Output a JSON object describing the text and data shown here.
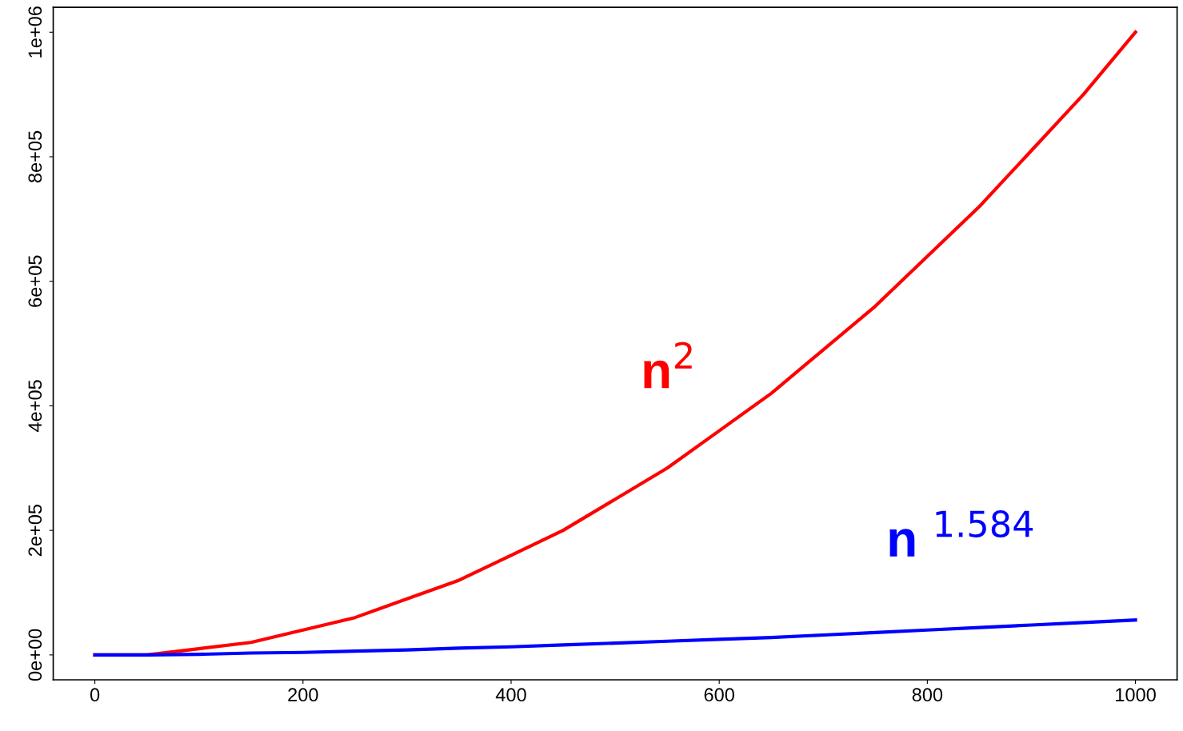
{
  "chart_data": {
    "type": "line",
    "x": [
      0,
      50,
      100,
      150,
      200,
      250,
      300,
      350,
      400,
      450,
      500,
      550,
      600,
      650,
      700,
      750,
      800,
      850,
      900,
      950,
      1000
    ],
    "series": [
      {
        "name": "n$^{2}$",
        "color": "#ff0000",
        "values": [
          0,
          0,
          10000,
          20000,
          40000,
          60000,
          90000,
          120000,
          160000,
          200000,
          250000,
          300000,
          360000,
          420000,
          490000,
          560000,
          640000,
          720000,
          810000,
          900000,
          1000000
        ]
      },
      {
        "name": "n $^{1.584}$",
        "color": "#0000ff",
        "values": [
          0,
          0,
          1000,
          3000,
          4000,
          6000,
          8000,
          11000,
          13000,
          16000,
          19000,
          22000,
          25000,
          28000,
          32000,
          36000,
          40000,
          44000,
          48000,
          52000,
          56000
        ]
      }
    ],
    "xlim": [
      -40,
      1040
    ],
    "ylim": [
      -40000,
      1040000
    ],
    "xticks": [
      0,
      200,
      400,
      600,
      800,
      1000
    ],
    "yticks": [
      {
        "value": 0,
        "label": "0e+00"
      },
      {
        "value": 200000,
        "label": "2e+05"
      },
      {
        "value": 400000,
        "label": "4e+05"
      },
      {
        "value": 600000,
        "label": "6e+05"
      },
      {
        "value": 800000,
        "label": "8e+05"
      },
      {
        "value": 1000000,
        "label": "1e+06"
      }
    ],
    "grid": false,
    "legend": false
  }
}
